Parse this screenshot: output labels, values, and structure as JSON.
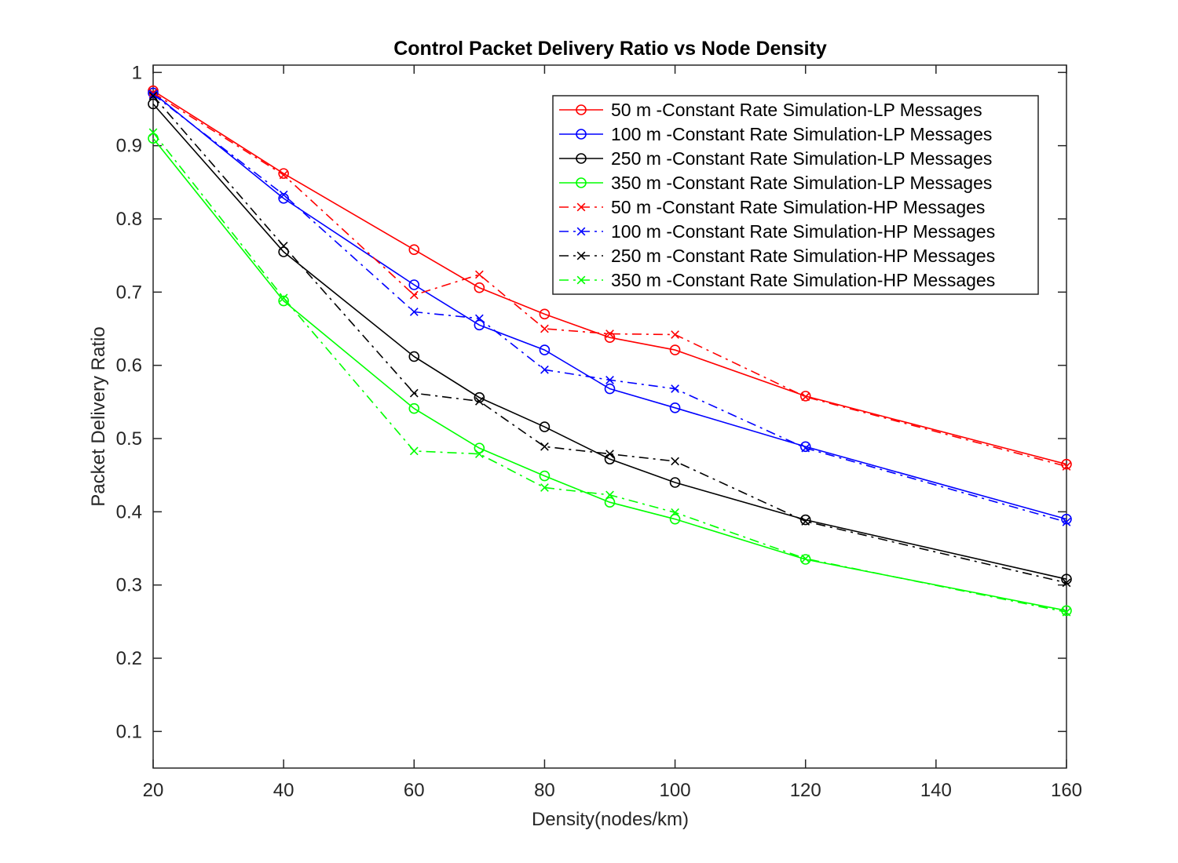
{
  "chart_data": {
    "type": "line",
    "title": "Control Packet Delivery Ratio vs Node Density",
    "xlabel": "Density(nodes/km)",
    "ylabel": "Packet Delivery Ratio",
    "xlim": [
      20,
      160
    ],
    "ylim": [
      0.05,
      1.01
    ],
    "xticks": [
      20,
      40,
      60,
      80,
      100,
      120,
      140,
      160
    ],
    "yticks": [
      0.1,
      0.2,
      0.3,
      0.4,
      0.5,
      0.6,
      0.7,
      0.8,
      0.9,
      1
    ],
    "x": [
      20,
      40,
      60,
      70,
      80,
      90,
      100,
      120,
      160
    ],
    "grid": false,
    "legend_position": "top-right",
    "series": [
      {
        "name": "50 m -Constant Rate Simulation-LP Messages",
        "color": "#ff0000",
        "line": "solid",
        "marker": "circle",
        "values": [
          0.975,
          0.862,
          0.758,
          0.706,
          0.67,
          0.638,
          0.621,
          0.558,
          0.465
        ]
      },
      {
        "name": "100 m -Constant Rate Simulation-LP Messages",
        "color": "#0000ff",
        "line": "solid",
        "marker": "circle",
        "values": [
          0.972,
          0.828,
          0.71,
          0.655,
          0.621,
          0.568,
          0.542,
          0.489,
          0.39
        ]
      },
      {
        "name": "250 m -Constant Rate Simulation-LP Messages",
        "color": "#000000",
        "line": "solid",
        "marker": "circle",
        "values": [
          0.957,
          0.755,
          0.612,
          0.556,
          0.516,
          0.472,
          0.44,
          0.389,
          0.308
        ]
      },
      {
        "name": "350 m -Constant Rate Simulation-LP Messages",
        "color": "#00ff00",
        "line": "solid",
        "marker": "circle",
        "values": [
          0.91,
          0.688,
          0.541,
          0.487,
          0.449,
          0.413,
          0.39,
          0.335,
          0.265
        ]
      },
      {
        "name": "50 m -Constant Rate Simulation-HP Messages",
        "color": "#ff0000",
        "line": "dashdot",
        "marker": "x",
        "values": [
          0.972,
          0.86,
          0.696,
          0.724,
          0.65,
          0.643,
          0.642,
          0.557,
          0.462
        ]
      },
      {
        "name": "100 m -Constant Rate Simulation-HP Messages",
        "color": "#0000ff",
        "line": "dashdot",
        "marker": "x",
        "values": [
          0.97,
          0.833,
          0.673,
          0.664,
          0.594,
          0.58,
          0.568,
          0.487,
          0.386
        ]
      },
      {
        "name": "250 m -Constant Rate Simulation-HP Messages",
        "color": "#000000",
        "line": "dashdot",
        "marker": "x",
        "values": [
          0.968,
          0.763,
          0.562,
          0.551,
          0.489,
          0.479,
          0.469,
          0.387,
          0.303
        ]
      },
      {
        "name": "350 m -Constant Rate Simulation-HP Messages",
        "color": "#00ff00",
        "line": "dashdot",
        "marker": "x",
        "values": [
          0.918,
          0.692,
          0.483,
          0.479,
          0.433,
          0.423,
          0.399,
          0.336,
          0.263
        ]
      }
    ]
  }
}
